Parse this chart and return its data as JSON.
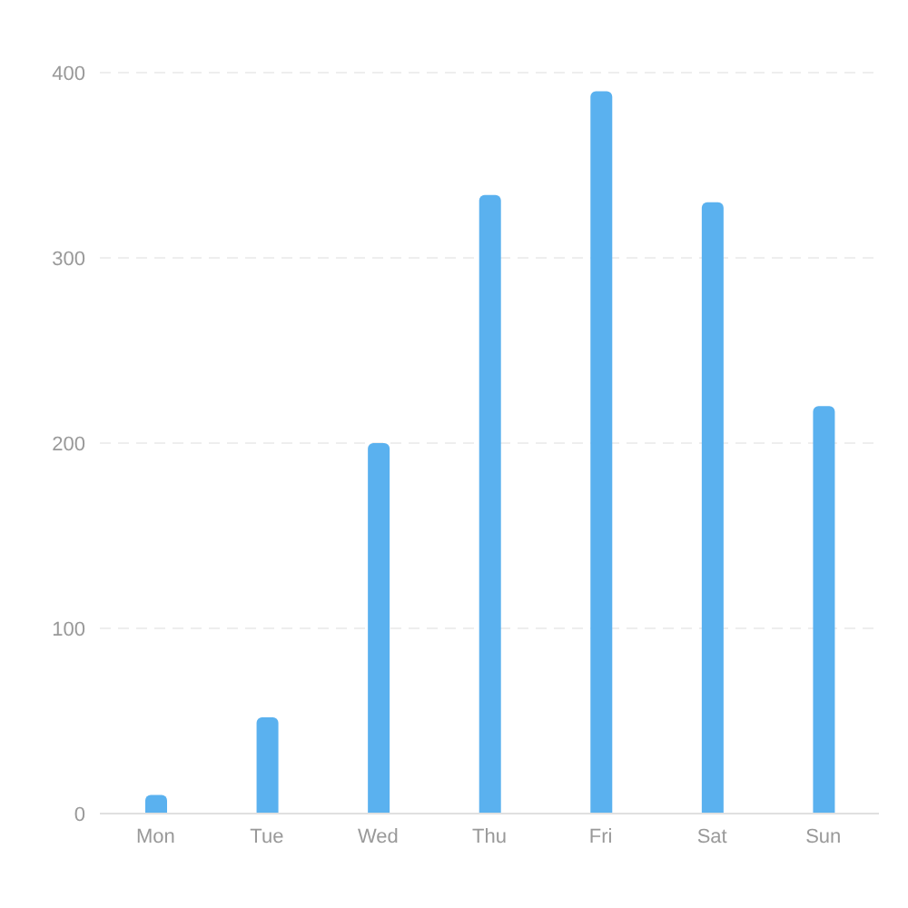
{
  "chart_data": {
    "type": "bar",
    "categories": [
      "Mon",
      "Tue",
      "Wed",
      "Thu",
      "Fri",
      "Sat",
      "Sun"
    ],
    "values": [
      10,
      52,
      200,
      334,
      390,
      330,
      220
    ],
    "color": "#5ab1ef",
    "ylim": [
      0,
      400
    ],
    "yticks": [
      0,
      100,
      200,
      300,
      400
    ],
    "grid": "y"
  }
}
